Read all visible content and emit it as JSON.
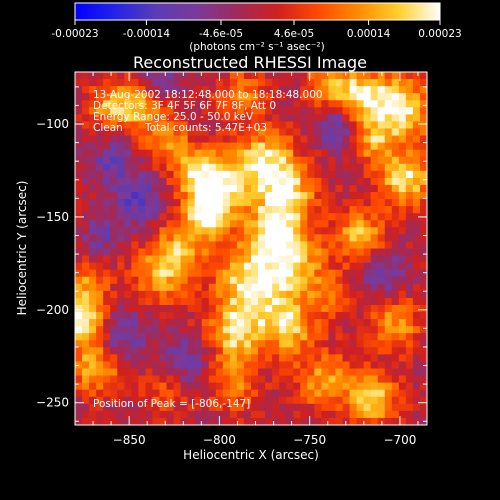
{
  "chart_data": {
    "type": "heatmap",
    "title": "Reconstructed RHESSI Image",
    "xlabel": "Heliocentric X (arcsec)",
    "ylabel": "Heliocentric Y (arcsec)",
    "xlim": [
      -880,
      -685
    ],
    "ylim": [
      -262,
      -72
    ],
    "x_ticks": [
      -850,
      -800,
      -750,
      -700
    ],
    "y_ticks": [
      -100,
      -150,
      -200,
      -250
    ],
    "x_tick_labels": [
      "−850",
      "−800",
      "−750",
      "−700"
    ],
    "y_tick_labels": [
      "−100",
      "−150",
      "−200",
      "−250"
    ],
    "colorbar": {
      "min": -0.00023,
      "max": 0.00023,
      "ticks": [
        -0.00023,
        -0.00014,
        -4.6e-05,
        4.6e-05,
        0.00014,
        0.00023
      ],
      "tick_labels": [
        "-0.00023",
        "-0.00014",
        "-4.6e-05",
        "4.6e-05",
        "0.00014",
        "0.00023"
      ],
      "units_text": "(photons cm⁻² s⁻¹ asec⁻²)",
      "palette": [
        "#0000ff",
        "#2424e8",
        "#5a3cb4",
        "#7a3a9a",
        "#a02a5a",
        "#d02020",
        "#ff4a00",
        "#ff8c00",
        "#ffd030",
        "#ffffff"
      ]
    },
    "annotations": {
      "time_range": "13-Aug-2002 18:12:48.000 to 18:18:48.000",
      "detectors": "Detectors: 3F 4F 5F 6F 7F 8F, Att 0",
      "energy_range": "Energy Range: 25.0 - 50.0 keV",
      "method": "Clean",
      "total_counts": "Total counts: 5.47E+03",
      "peak_position": "Position of Peak = [-806,-147]"
    },
    "peak": {
      "x": -806,
      "y": -147
    },
    "intensity_blobs": [
      {
        "x": -806,
        "y": -147,
        "amp": 1.0,
        "s": 9
      },
      {
        "x": -800,
        "y": -132,
        "amp": 0.85,
        "s": 11
      },
      {
        "x": -775,
        "y": -120,
        "amp": 0.85,
        "s": 12
      },
      {
        "x": -762,
        "y": -138,
        "amp": 0.8,
        "s": 11
      },
      {
        "x": -772,
        "y": -157,
        "amp": 0.75,
        "s": 10
      },
      {
        "x": -760,
        "y": -172,
        "amp": 0.8,
        "s": 12
      },
      {
        "x": -776,
        "y": -190,
        "amp": 0.7,
        "s": 13
      },
      {
        "x": -792,
        "y": -205,
        "amp": 0.55,
        "s": 11
      },
      {
        "x": -762,
        "y": -210,
        "amp": 0.75,
        "s": 10
      },
      {
        "x": -790,
        "y": -178,
        "amp": 0.45,
        "s": 10
      },
      {
        "x": -820,
        "y": -165,
        "amp": 0.55,
        "s": 10
      },
      {
        "x": -832,
        "y": -180,
        "amp": 0.7,
        "s": 11
      },
      {
        "x": -815,
        "y": -125,
        "amp": 0.55,
        "s": 9
      },
      {
        "x": -830,
        "y": -108,
        "amp": 0.6,
        "s": 9
      },
      {
        "x": -858,
        "y": -90,
        "amp": 0.7,
        "s": 10
      },
      {
        "x": -842,
        "y": -90,
        "amp": 0.55,
        "s": 8
      },
      {
        "x": -875,
        "y": -205,
        "amp": 0.95,
        "s": 9
      },
      {
        "x": -868,
        "y": -230,
        "amp": 0.7,
        "s": 11
      },
      {
        "x": -872,
        "y": -185,
        "amp": 0.5,
        "s": 8
      },
      {
        "x": -700,
        "y": -92,
        "amp": 0.95,
        "s": 12
      },
      {
        "x": -722,
        "y": -85,
        "amp": 0.8,
        "s": 10
      },
      {
        "x": -740,
        "y": -80,
        "amp": 0.6,
        "s": 9
      },
      {
        "x": -697,
        "y": -130,
        "amp": 0.9,
        "s": 10
      },
      {
        "x": -715,
        "y": -110,
        "amp": 0.55,
        "s": 8
      },
      {
        "x": -722,
        "y": -160,
        "amp": 0.7,
        "s": 10
      },
      {
        "x": -738,
        "y": -192,
        "amp": 0.5,
        "s": 9
      },
      {
        "x": -702,
        "y": -208,
        "amp": 0.6,
        "s": 10
      },
      {
        "x": -715,
        "y": -248,
        "amp": 0.8,
        "s": 10
      },
      {
        "x": -742,
        "y": -238,
        "amp": 0.6,
        "s": 11
      },
      {
        "x": -792,
        "y": -240,
        "amp": 0.5,
        "s": 10
      },
      {
        "x": -830,
        "y": -245,
        "amp": 0.35,
        "s": 9
      },
      {
        "x": -788,
        "y": -85,
        "amp": 0.55,
        "s": 9
      },
      {
        "x": -790,
        "y": -218,
        "amp": 0.45,
        "s": 9
      },
      {
        "x": -845,
        "y": -140,
        "amp": -0.55,
        "s": 9
      },
      {
        "x": -860,
        "y": -120,
        "amp": -0.45,
        "s": 9
      },
      {
        "x": -855,
        "y": -215,
        "amp": -0.55,
        "s": 10
      },
      {
        "x": -820,
        "y": -228,
        "amp": -0.45,
        "s": 9
      },
      {
        "x": -865,
        "y": -160,
        "amp": -0.35,
        "s": 8
      },
      {
        "x": -735,
        "y": -100,
        "amp": -0.5,
        "s": 9
      },
      {
        "x": -710,
        "y": -180,
        "amp": -0.45,
        "s": 9
      },
      {
        "x": -835,
        "y": -77,
        "amp": -0.4,
        "s": 8
      }
    ]
  }
}
